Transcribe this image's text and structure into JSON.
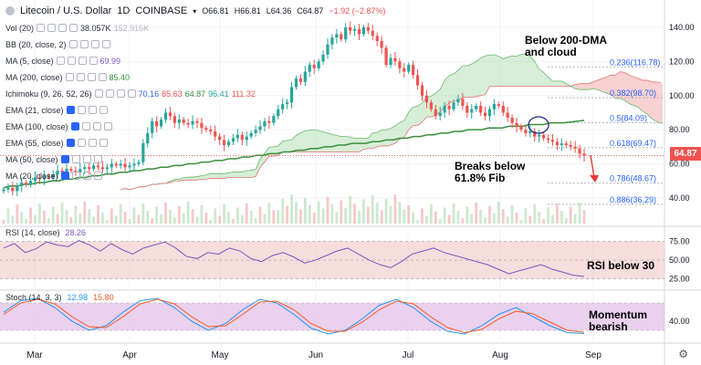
{
  "header": {
    "symbol": "Litecoin / U.S. Dollar",
    "interval": "1D",
    "exchange": "COINBASE",
    "ohlc": {
      "o": "O66.81",
      "h": "H66.81",
      "l": "L64.36",
      "c": "C64.87",
      "chg": "−1.92 (−2.87%)"
    }
  },
  "indicators": [
    {
      "label": "Vol (20)",
      "values": [
        "38.057K",
        "152.916K"
      ]
    },
    {
      "label": "BB (20, close, 2)",
      "values": []
    },
    {
      "label": "MA (5, close)",
      "values": [
        "69.99"
      ]
    },
    {
      "label": "MA (200, close)",
      "values": [
        "85.40"
      ]
    },
    {
      "label": "Ichimoku (9, 26, 52, 26)",
      "values": [
        "70.16",
        "85.63",
        "64.87",
        "96.41",
        "111.32"
      ]
    },
    {
      "label": "EMA (21, close)",
      "values": []
    },
    {
      "label": "EMA (100, close)",
      "values": []
    },
    {
      "label": "EMA (55, close)",
      "values": []
    },
    {
      "label": "MA (50, close)",
      "values": []
    },
    {
      "label": "MA (20, close)",
      "values": []
    }
  ],
  "annotations": {
    "dma": "Below 200-DMA\nand cloud",
    "fib": "Breaks below\n61.8% Fib",
    "rsi": "RSI below 30",
    "mom": "Momentum\nbearish"
  },
  "rsi_label": {
    "name": "RSI (14, close)",
    "value": "28.26"
  },
  "stoch_label": {
    "name": "Stoch (14, 3, 3)",
    "k": "12.98",
    "d": "15.80"
  },
  "last_price": "64.87",
  "colors": {
    "up": "#26a69a",
    "down": "#ef5350",
    "ma200": "#388e3c",
    "cloud_green": "#a5d6a7",
    "cloud_red": "#ef9a9a",
    "rsi": "#7e57c2",
    "stoch_k": "#2196f3",
    "stoch_d": "#ff5722",
    "fib": "#2962ff"
  },
  "chart_data": {
    "type": "candlestick",
    "x_axis": {
      "ticks": [
        "Mar",
        "Apr",
        "May",
        "Jun",
        "Jul",
        "Aug",
        "Sep"
      ]
    },
    "price_axis": {
      "ticks": [
        40,
        60,
        80,
        100,
        120,
        140
      ],
      "range": [
        25,
        148
      ]
    },
    "closes": [
      45,
      46,
      44,
      47,
      49,
      48,
      50,
      52,
      51,
      53,
      52,
      54,
      56,
      55,
      57,
      56,
      55,
      57,
      58,
      57,
      59,
      58,
      57,
      58,
      60,
      59,
      60,
      58,
      59,
      60,
      61,
      72,
      78,
      85,
      82,
      86,
      90,
      88,
      84,
      86,
      84,
      83,
      85,
      84,
      81,
      80,
      79,
      76,
      74,
      71,
      73,
      75,
      77,
      74,
      76,
      78,
      80,
      82,
      85,
      84,
      88,
      92,
      95,
      96,
      105,
      110,
      108,
      114,
      118,
      116,
      120,
      124,
      130,
      134,
      136,
      133,
      140,
      138,
      139,
      136,
      140,
      138,
      135,
      132,
      128,
      118,
      122,
      120,
      116,
      114,
      118,
      112,
      106,
      100,
      96,
      92,
      88,
      90,
      94,
      92,
      96,
      98,
      94,
      90,
      92,
      94,
      90,
      88,
      92,
      95,
      94,
      90,
      87,
      84,
      82,
      80,
      78,
      79,
      76,
      77,
      75,
      74,
      73,
      71,
      72,
      71,
      70,
      69,
      66,
      64.87
    ],
    "ma200": [
      46,
      47,
      47,
      48,
      48,
      49,
      49,
      50,
      50,
      51,
      51,
      52,
      52,
      53,
      53,
      54,
      54,
      55,
      55,
      56,
      56,
      57,
      57,
      58,
      58,
      59,
      59,
      60,
      60,
      61,
      61,
      62,
      62,
      63,
      63,
      64,
      64,
      65,
      65,
      66,
      66,
      67,
      67,
      68,
      68,
      69,
      69,
      70,
      70,
      71,
      71,
      72,
      72,
      72,
      73,
      73,
      74,
      74,
      75,
      75,
      76,
      76,
      77,
      77,
      78,
      78,
      79,
      79,
      80,
      80,
      80,
      81,
      81,
      81,
      82,
      82,
      82,
      83,
      83,
      83,
      84,
      84,
      84,
      84.5,
      85,
      85.4
    ],
    "fibonacci": [
      {
        "label": "0.236(116.78)",
        "value": 116.78
      },
      {
        "label": "0.382(98.70)",
        "value": 98.7
      },
      {
        "label": "0.5(84.09)",
        "value": 84.09
      },
      {
        "label": "0.618(69.47)",
        "value": 69.47
      },
      {
        "label": "0.786(48.67)",
        "value": 48.67
      },
      {
        "label": "0.886(36.29)",
        "value": 36.29
      }
    ],
    "rsi": {
      "axis_ticks": [
        25,
        50,
        75
      ],
      "values": [
        66,
        72,
        60,
        65,
        74,
        70,
        68,
        76,
        70,
        62,
        72,
        64,
        58,
        66,
        70,
        74,
        66,
        55,
        52,
        60,
        58,
        66,
        62,
        52,
        48,
        56,
        60,
        54,
        46,
        50,
        56,
        62,
        66,
        58,
        50,
        44,
        40,
        48,
        58,
        62,
        66,
        60,
        56,
        52,
        48,
        44,
        38,
        32,
        36,
        40,
        44,
        38,
        34,
        30,
        28.26
      ]
    },
    "stoch": {
      "axis_ticks": [
        40
      ],
      "k": [
        60,
        85,
        90,
        70,
        40,
        20,
        30,
        60,
        85,
        90,
        70,
        40,
        20,
        35,
        65,
        88,
        80,
        55,
        25,
        12,
        20,
        45,
        75,
        88,
        70,
        40,
        18,
        12,
        30,
        55,
        70,
        50,
        30,
        15,
        12.98
      ],
      "d": [
        55,
        80,
        88,
        78,
        50,
        28,
        26,
        50,
        78,
        88,
        78,
        50,
        28,
        30,
        55,
        82,
        84,
        65,
        35,
        18,
        18,
        38,
        65,
        84,
        78,
        50,
        26,
        15,
        22,
        45,
        62,
        56,
        38,
        20,
        15.8
      ]
    }
  }
}
